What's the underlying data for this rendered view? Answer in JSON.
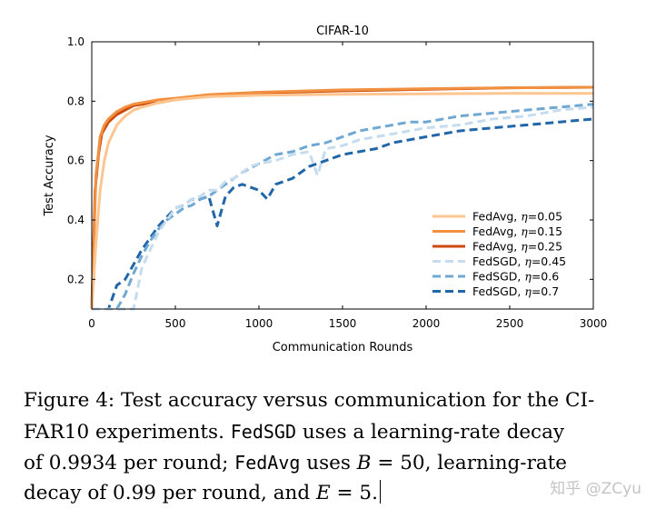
{
  "chart_data": {
    "type": "line",
    "title": "CIFAR-10",
    "xlabel": "Communication Rounds",
    "ylabel": "Test Accuracy",
    "xlim": [
      0,
      3000
    ],
    "ylim": [
      0.1,
      1.0
    ],
    "xticks": [
      0,
      500,
      1000,
      1500,
      2000,
      2500,
      3000
    ],
    "xtick_labels": [
      "0",
      "500",
      "1000",
      "1500",
      "2000",
      "2500",
      "3000"
    ],
    "yticks": [
      0.2,
      0.4,
      0.6,
      0.8,
      1.0
    ],
    "ytick_labels": [
      "0.2",
      "0.4",
      "0.6",
      "0.8",
      "1.0"
    ],
    "legend_position": "lower-right",
    "series": [
      {
        "name": "FedAvg, η=0.05",
        "legend_prefix": "FedAvg, ",
        "legend_eta": "η",
        "legend_value": "=0.05",
        "color": "#fdc590",
        "style": "solid",
        "x": [
          0,
          25,
          50,
          75,
          100,
          150,
          200,
          250,
          300,
          400,
          500,
          700,
          1000,
          1500,
          2000,
          2500,
          3000
        ],
        "y": [
          0.1,
          0.32,
          0.5,
          0.6,
          0.66,
          0.72,
          0.75,
          0.77,
          0.78,
          0.795,
          0.805,
          0.815,
          0.82,
          0.823,
          0.825,
          0.826,
          0.826
        ]
      },
      {
        "name": "FedAvg, η=0.15",
        "legend_prefix": "FedAvg, ",
        "legend_eta": "η",
        "legend_value": "=0.15",
        "color": "#f09040",
        "style": "solid",
        "x": [
          0,
          25,
          50,
          75,
          100,
          150,
          200,
          250,
          300,
          400,
          500,
          700,
          1000,
          1500,
          2000,
          2500,
          3000
        ],
        "y": [
          0.1,
          0.55,
          0.68,
          0.72,
          0.74,
          0.765,
          0.78,
          0.79,
          0.795,
          0.805,
          0.81,
          0.822,
          0.83,
          0.838,
          0.842,
          0.845,
          0.847
        ]
      },
      {
        "name": "FedAvg, η=0.25",
        "legend_prefix": "FedAvg, ",
        "legend_eta": "η",
        "legend_value": "=0.25",
        "color": "#cc4a0c",
        "style": "solid",
        "x": [
          0,
          20,
          40,
          60,
          80,
          100,
          150,
          200,
          250,
          300,
          400,
          500,
          700,
          1000,
          1500,
          2000,
          2500,
          3000
        ],
        "y": [
          0.1,
          0.5,
          0.62,
          0.69,
          0.71,
          0.73,
          0.755,
          0.77,
          0.785,
          0.79,
          0.795,
          0.805,
          0.818,
          0.828,
          0.835,
          0.84,
          0.845,
          0.847
        ]
      },
      {
        "name": "FedSGD, η=0.45",
        "legend_prefix": "FedSGD, ",
        "legend_eta": "η",
        "legend_value": "=0.45",
        "color": "#c5dcef",
        "style": "dashed",
        "x": [
          0,
          100,
          200,
          250,
          300,
          350,
          400,
          450,
          500,
          550,
          600,
          650,
          700,
          750,
          800,
          850,
          900,
          950,
          1000,
          1100,
          1200,
          1300,
          1350,
          1400,
          1500,
          1600,
          1700,
          1800,
          1900,
          2000,
          2200,
          2400,
          2600,
          2800,
          3000
        ],
        "y": [
          0.1,
          0.1,
          0.1,
          0.1,
          0.24,
          0.3,
          0.36,
          0.4,
          0.44,
          0.45,
          0.47,
          0.48,
          0.5,
          0.5,
          0.53,
          0.54,
          0.56,
          0.58,
          0.59,
          0.6,
          0.62,
          0.63,
          0.55,
          0.64,
          0.65,
          0.67,
          0.68,
          0.69,
          0.7,
          0.71,
          0.72,
          0.74,
          0.75,
          0.77,
          0.78
        ]
      },
      {
        "name": "FedSGD, η=0.6",
        "legend_prefix": "FedSGD, ",
        "legend_eta": "η",
        "legend_value": "=0.6",
        "color": "#6fa8d2",
        "style": "dashed",
        "x": [
          0,
          100,
          150,
          200,
          250,
          300,
          350,
          400,
          450,
          500,
          550,
          600,
          650,
          700,
          750,
          800,
          850,
          900,
          1000,
          1100,
          1200,
          1300,
          1400,
          1500,
          1600,
          1700,
          1800,
          1900,
          2000,
          2200,
          2400,
          2600,
          2800,
          3000
        ],
        "y": [
          0.1,
          0.1,
          0.1,
          0.15,
          0.22,
          0.28,
          0.33,
          0.37,
          0.4,
          0.42,
          0.44,
          0.45,
          0.47,
          0.48,
          0.5,
          0.52,
          0.54,
          0.56,
          0.59,
          0.62,
          0.63,
          0.65,
          0.66,
          0.68,
          0.7,
          0.71,
          0.72,
          0.73,
          0.73,
          0.75,
          0.76,
          0.77,
          0.78,
          0.79
        ]
      },
      {
        "name": "FedSGD, η=0.7",
        "legend_prefix": "FedSGD, ",
        "legend_eta": "η",
        "legend_value": "=0.7",
        "color": "#2066a8",
        "style": "dashed",
        "x": [
          0,
          100,
          150,
          200,
          250,
          300,
          350,
          400,
          450,
          500,
          550,
          600,
          650,
          700,
          750,
          800,
          850,
          900,
          1000,
          1050,
          1100,
          1200,
          1300,
          1400,
          1500,
          1600,
          1700,
          1800,
          1900,
          2000,
          2200,
          2400,
          2600,
          2800,
          3000
        ],
        "y": [
          0.1,
          0.1,
          0.18,
          0.2,
          0.25,
          0.3,
          0.34,
          0.38,
          0.41,
          0.44,
          0.45,
          0.47,
          0.47,
          0.48,
          0.38,
          0.48,
          0.51,
          0.52,
          0.5,
          0.47,
          0.52,
          0.54,
          0.58,
          0.6,
          0.62,
          0.63,
          0.64,
          0.66,
          0.67,
          0.68,
          0.7,
          0.71,
          0.72,
          0.73,
          0.74
        ]
      }
    ]
  },
  "caption": {
    "line1": "Figure 4: Test accuracy versus communication for the CI-",
    "line2_a": "FAR10 experiments.",
    "line2_code": "FedSGD",
    "line2_b": "uses a learning-rate decay",
    "line3_a": "of 0.9934 per round;",
    "line3_code": "FedAvg",
    "line3_b": "uses",
    "line3_var": "B",
    "line3_c": "= 50, learning-rate",
    "line4_a": "decay of 0.99 per round, and",
    "line4_var": "E",
    "line4_b": "= 5."
  },
  "watermark": "知乎 @ZCyu"
}
